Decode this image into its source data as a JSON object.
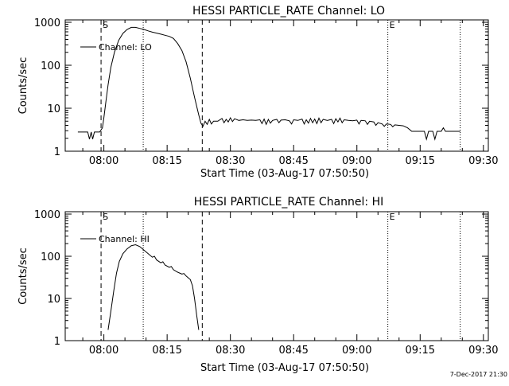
{
  "footer": {
    "timestamp": "7-Dec-2017 21:30"
  },
  "chart_data": [
    {
      "type": "line",
      "title": "HESSI PARTICLE_RATE Channel: LO",
      "xlabel": "Start Time (03-Aug-17 07:50:50)",
      "ylabel": "Counts/sec",
      "yscale": "log",
      "xlim": [
        "07:50:50",
        "09:31:10"
      ],
      "ylim": [
        1,
        1000
      ],
      "x_ticks": [
        "08:00",
        "08:15",
        "08:30",
        "08:45",
        "09:00",
        "09:15",
        "09:30"
      ],
      "y_ticks": [
        "1",
        "10",
        "100",
        "1000"
      ],
      "legend": {
        "position": "top-left",
        "entries": [
          "Channel: LO"
        ]
      },
      "markers": [
        {
          "time": "07:59:20",
          "label": "S",
          "style": "dashed"
        },
        {
          "time": "08:09:20",
          "label": "",
          "style": "dotted"
        },
        {
          "time": "08:23:20",
          "label": "",
          "style": "dashed"
        },
        {
          "time": "09:07:20",
          "label": "E",
          "style": "dotted"
        },
        {
          "time": "09:24:30",
          "label": "",
          "style": "dotted"
        }
      ],
      "series": [
        {
          "name": "Channel: LO",
          "points": [
            [
              "07:53:50",
              2.8
            ],
            [
              "07:56:10",
              2.8
            ],
            [
              "07:56:35",
              1.9
            ],
            [
              "07:57:00",
              2.8
            ],
            [
              "07:57:20",
              1.9
            ],
            [
              "07:57:45",
              2.8
            ],
            [
              "07:59:00",
              2.8
            ],
            [
              "07:59:40",
              3.5
            ],
            [
              "08:00:00",
              6
            ],
            [
              "08:00:30",
              15
            ],
            [
              "08:01:00",
              35
            ],
            [
              "08:01:40",
              90
            ],
            [
              "08:02:30",
              200
            ],
            [
              "08:03:30",
              380
            ],
            [
              "08:04:30",
              550
            ],
            [
              "08:05:30",
              680
            ],
            [
              "08:06:30",
              760
            ],
            [
              "08:07:30",
              760
            ],
            [
              "08:08:30",
              720
            ],
            [
              "08:09:30",
              680
            ],
            [
              "08:10:30",
              630
            ],
            [
              "08:11:30",
              590
            ],
            [
              "08:12:30",
              560
            ],
            [
              "08:13:30",
              530
            ],
            [
              "08:14:30",
              500
            ],
            [
              "08:15:30",
              470
            ],
            [
              "08:16:30",
              420
            ],
            [
              "08:17:30",
              320
            ],
            [
              "08:18:30",
              220
            ],
            [
              "08:19:30",
              120
            ],
            [
              "08:20:30",
              50
            ],
            [
              "08:21:30",
              18
            ],
            [
              "08:22:30",
              7
            ],
            [
              "08:23:00",
              4.5
            ],
            [
              "08:23:30",
              3.8
            ],
            [
              "08:24:00",
              5
            ],
            [
              "08:24:30",
              4.2
            ],
            [
              "08:25:00",
              5.5
            ],
            [
              "08:25:30",
              4.3
            ],
            [
              "08:26:00",
              5
            ],
            [
              "08:27:00",
              5
            ],
            [
              "08:28:00",
              5.8
            ],
            [
              "08:28:30",
              4.6
            ],
            [
              "08:29:00",
              5.5
            ],
            [
              "08:29:30",
              4.8
            ],
            [
              "08:30:00",
              6
            ],
            [
              "08:30:30",
              4.9
            ],
            [
              "08:31:00",
              5.7
            ],
            [
              "08:32:00",
              5.2
            ],
            [
              "08:33:00",
              5.4
            ],
            [
              "08:34:00",
              5.2
            ],
            [
              "08:35:00",
              5.3
            ],
            [
              "08:36:00",
              5.2
            ],
            [
              "08:37:00",
              5.4
            ],
            [
              "08:37:30",
              4.4
            ],
            [
              "08:38:00",
              5.6
            ],
            [
              "08:38:30",
              4.2
            ],
            [
              "08:39:00",
              5.5
            ],
            [
              "08:39:30",
              4.5
            ],
            [
              "08:40:00",
              5.2
            ],
            [
              "08:41:00",
              5.5
            ],
            [
              "08:41:30",
              4.6
            ],
            [
              "08:42:00",
              5.3
            ],
            [
              "08:43:00",
              5.4
            ],
            [
              "08:44:00",
              5.1
            ],
            [
              "08:44:30",
              4.3
            ],
            [
              "08:45:00",
              5.4
            ],
            [
              "08:46:00",
              5.2
            ],
            [
              "08:47:00",
              5.6
            ],
            [
              "08:47:30",
              4.3
            ],
            [
              "08:48:00",
              5.4
            ],
            [
              "08:48:30",
              4.5
            ],
            [
              "08:49:00",
              5.8
            ],
            [
              "08:49:30",
              4.6
            ],
            [
              "08:50:00",
              5.6
            ],
            [
              "08:50:30",
              4.4
            ],
            [
              "08:51:00",
              5.9
            ],
            [
              "08:51:30",
              4.6
            ],
            [
              "08:52:00",
              5.5
            ],
            [
              "08:53:00",
              5.2
            ],
            [
              "08:54:00",
              5.5
            ],
            [
              "08:54:30",
              4.4
            ],
            [
              "08:55:00",
              5.7
            ],
            [
              "08:55:30",
              4.8
            ],
            [
              "08:56:00",
              5.9
            ],
            [
              "08:56:30",
              4.6
            ],
            [
              "08:57:00",
              5.4
            ],
            [
              "08:58:00",
              5.2
            ],
            [
              "08:59:00",
              5.1
            ],
            [
              "09:00:00",
              5.3
            ],
            [
              "09:00:30",
              4.3
            ],
            [
              "09:01:00",
              5.2
            ],
            [
              "09:02:00",
              5.1
            ],
            [
              "09:02:30",
              4.2
            ],
            [
              "09:03:00",
              5.0
            ],
            [
              "09:04:00",
              4.8
            ],
            [
              "09:04:30",
              4.0
            ],
            [
              "09:05:00",
              4.6
            ],
            [
              "09:06:00",
              4.3
            ],
            [
              "09:06:30",
              3.8
            ],
            [
              "09:07:00",
              4.3
            ],
            [
              "09:08:00",
              4.2
            ],
            [
              "09:08:30",
              3.7
            ],
            [
              "09:09:00",
              4.1
            ],
            [
              "09:10:00",
              4.0
            ],
            [
              "09:11:00",
              3.9
            ],
            [
              "09:12:00",
              3.5
            ],
            [
              "09:13:00",
              2.9
            ],
            [
              "09:15:00",
              2.9
            ],
            [
              "09:16:00",
              2.9
            ],
            [
              "09:16:30",
              1.9
            ],
            [
              "09:17:00",
              2.9
            ],
            [
              "09:18:00",
              2.9
            ],
            [
              "09:18:30",
              1.9
            ],
            [
              "09:19:00",
              2.9
            ],
            [
              "09:20:00",
              2.9
            ],
            [
              "09:20:30",
              3.5
            ],
            [
              "09:21:00",
              2.9
            ],
            [
              "09:24:30",
              2.9
            ]
          ]
        }
      ]
    },
    {
      "type": "line",
      "title": "HESSI PARTICLE_RATE Channel: HI",
      "xlabel": "Start Time (03-Aug-17 07:50:50)",
      "ylabel": "Counts/sec",
      "yscale": "log",
      "xlim": [
        "07:50:50",
        "09:31:10"
      ],
      "ylim": [
        1,
        1000
      ],
      "x_ticks": [
        "08:00",
        "08:15",
        "08:30",
        "08:45",
        "09:00",
        "09:15",
        "09:30"
      ],
      "y_ticks": [
        "1",
        "10",
        "100",
        "1000"
      ],
      "legend": {
        "position": "top-left",
        "entries": [
          "Channel: HI"
        ]
      },
      "markers": [
        {
          "time": "07:59:20",
          "label": "S",
          "style": "dashed"
        },
        {
          "time": "08:09:20",
          "label": "",
          "style": "dotted"
        },
        {
          "time": "08:23:20",
          "label": "",
          "style": "dashed"
        },
        {
          "time": "09:07:20",
          "label": "E",
          "style": "dotted"
        },
        {
          "time": "09:24:30",
          "label": "",
          "style": "dotted"
        }
      ],
      "series": [
        {
          "name": "Channel: HI",
          "points": [
            [
              "08:01:00",
              1.8
            ],
            [
              "08:01:40",
              5
            ],
            [
              "08:02:20",
              15
            ],
            [
              "08:03:00",
              40
            ],
            [
              "08:03:40",
              75
            ],
            [
              "08:04:30",
              115
            ],
            [
              "08:05:30",
              150
            ],
            [
              "08:06:30",
              178
            ],
            [
              "08:07:30",
              188
            ],
            [
              "08:08:30",
              170
            ],
            [
              "08:09:30",
              140
            ],
            [
              "08:10:30",
              115
            ],
            [
              "08:11:30",
              95
            ],
            [
              "08:12:00",
              100
            ],
            [
              "08:12:30",
              82
            ],
            [
              "08:13:30",
              70
            ],
            [
              "08:14:00",
              74
            ],
            [
              "08:14:30",
              62
            ],
            [
              "08:15:30",
              55
            ],
            [
              "08:16:00",
              57
            ],
            [
              "08:16:30",
              48
            ],
            [
              "08:17:30",
              42
            ],
            [
              "08:18:30",
              38
            ],
            [
              "08:19:00",
              39
            ],
            [
              "08:19:30",
              34
            ],
            [
              "08:20:30",
              28
            ],
            [
              "08:21:00",
              20
            ],
            [
              "08:21:30",
              10
            ],
            [
              "08:22:00",
              4
            ],
            [
              "08:22:30",
              1.8
            ]
          ]
        }
      ]
    }
  ]
}
